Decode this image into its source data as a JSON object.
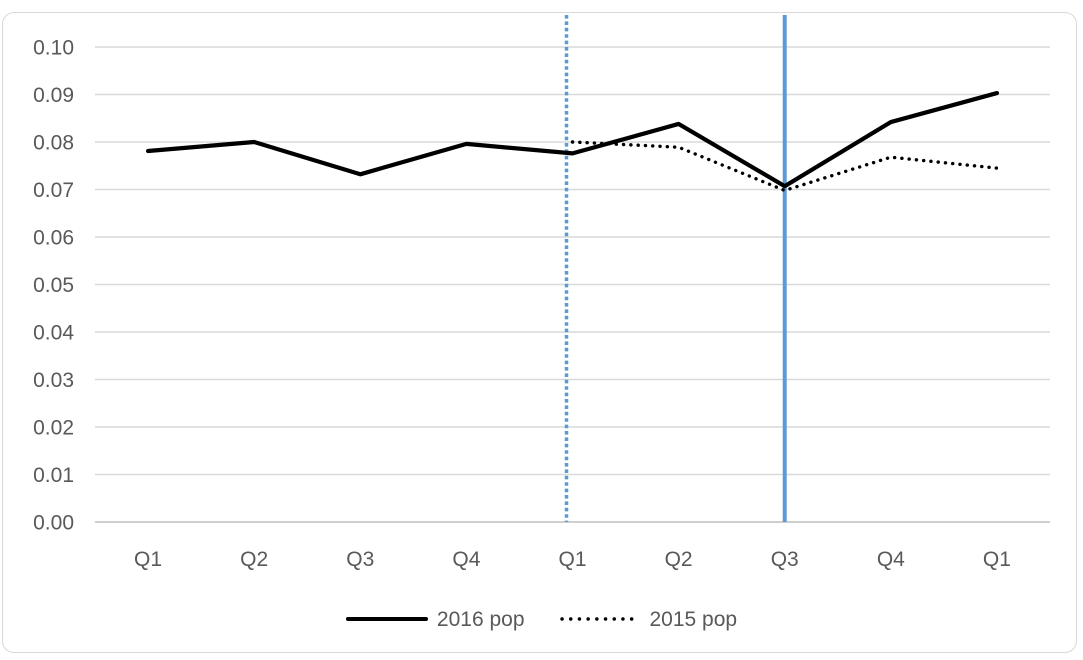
{
  "chart_data": {
    "type": "line",
    "categories": [
      "Q1",
      "Q2",
      "Q3",
      "Q4",
      "Q1",
      "Q2",
      "Q3",
      "Q4",
      "Q1"
    ],
    "series": [
      {
        "name": "2016 pop",
        "style": "solid",
        "color": "#000000",
        "values": [
          0.0781,
          0.08,
          0.0732,
          0.0796,
          0.0776,
          0.0838,
          0.0707,
          0.0842,
          0.0903
        ]
      },
      {
        "name": "2015 pop",
        "style": "dotted",
        "color": "#000000",
        "values": [
          null,
          null,
          null,
          null,
          0.08,
          0.0789,
          0.0698,
          0.0768,
          0.0745
        ]
      }
    ],
    "vlines": [
      {
        "category_index": 4,
        "style": "dotted",
        "color": "#5b9bd5"
      },
      {
        "category_index": 6,
        "style": "solid",
        "color": "#5b9bd5"
      }
    ],
    "title": "",
    "xlabel": "",
    "ylabel": "",
    "ylim": [
      0.0,
      0.1
    ],
    "y_tick_step": 0.01,
    "y_tick_labels": [
      "0.00",
      "0.01",
      "0.02",
      "0.03",
      "0.04",
      "0.05",
      "0.06",
      "0.07",
      "0.08",
      "0.09",
      "0.10"
    ],
    "grid": true,
    "gridline_color": "#d9d9d9",
    "axis_line_color": "#bfbfbf",
    "tick_label_color": "#595959",
    "legend_position": "bottom"
  }
}
